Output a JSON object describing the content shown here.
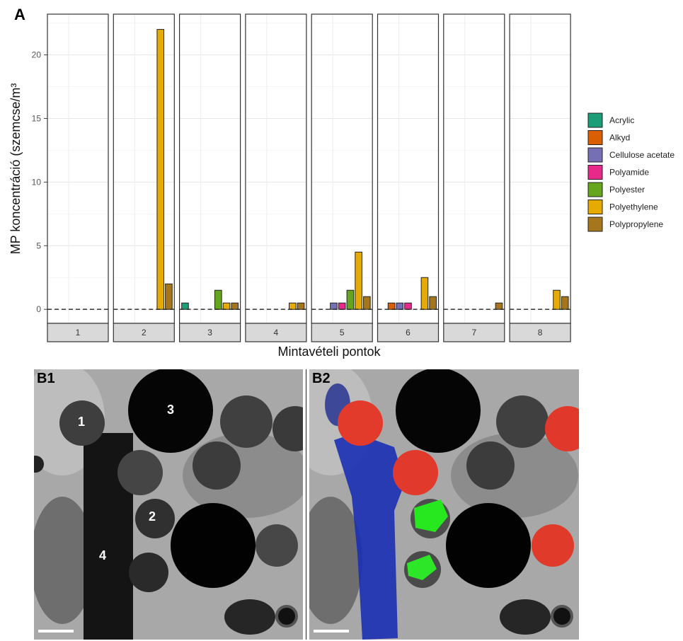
{
  "panel_a_label": "A",
  "chart_data": {
    "type": "bar",
    "facets": [
      "1",
      "2",
      "3",
      "4",
      "5",
      "6",
      "7",
      "8"
    ],
    "categories": [
      "Acrylic",
      "Alkyd",
      "Cellulose acetate",
      "Polyamide",
      "Polyester",
      "Polyethylene",
      "Polypropylene"
    ],
    "colors": [
      "#1b9e77",
      "#d95f02",
      "#7570b3",
      "#e7298a",
      "#66a61e",
      "#e6ab02",
      "#a6761d"
    ],
    "series": [
      {
        "name": "1",
        "values": [
          0,
          0,
          0,
          0,
          0,
          0,
          0
        ]
      },
      {
        "name": "2",
        "values": [
          0,
          0,
          0,
          0,
          0,
          22,
          2
        ]
      },
      {
        "name": "3",
        "values": [
          0.5,
          0,
          0,
          0,
          1.5,
          0.5,
          0.5
        ]
      },
      {
        "name": "4",
        "values": [
          0,
          0,
          0,
          0,
          0,
          0.5,
          0.5
        ]
      },
      {
        "name": "5",
        "values": [
          0,
          0,
          0.5,
          0.5,
          1.5,
          4.5,
          1
        ]
      },
      {
        "name": "6",
        "values": [
          0,
          0.5,
          0.5,
          0.5,
          0,
          2.5,
          1
        ]
      },
      {
        "name": "7",
        "values": [
          0,
          0,
          0,
          0,
          0,
          0,
          0.5
        ]
      },
      {
        "name": "8",
        "values": [
          0,
          0,
          0,
          0,
          0,
          1.5,
          1
        ]
      }
    ],
    "ylabel": "MP koncentráció (szemcse/m³",
    "xlabel": "Mintavételi pontok",
    "ylim": [
      -1.1,
      23.2
    ],
    "yticks": [
      0,
      5,
      10,
      15,
      20
    ],
    "reference_line": 0,
    "legend": {
      "position": "right",
      "labels": [
        "Acrylic",
        "Alkyd",
        "Cellulose acetate",
        "Polyamide",
        "Polyester",
        "Polyethylene",
        "Polypropylene"
      ]
    },
    "grid": true
  },
  "panel_b": {
    "b1_label": "B1",
    "b2_label": "B2",
    "particle_labels": [
      "1",
      "2",
      "3",
      "4"
    ]
  }
}
